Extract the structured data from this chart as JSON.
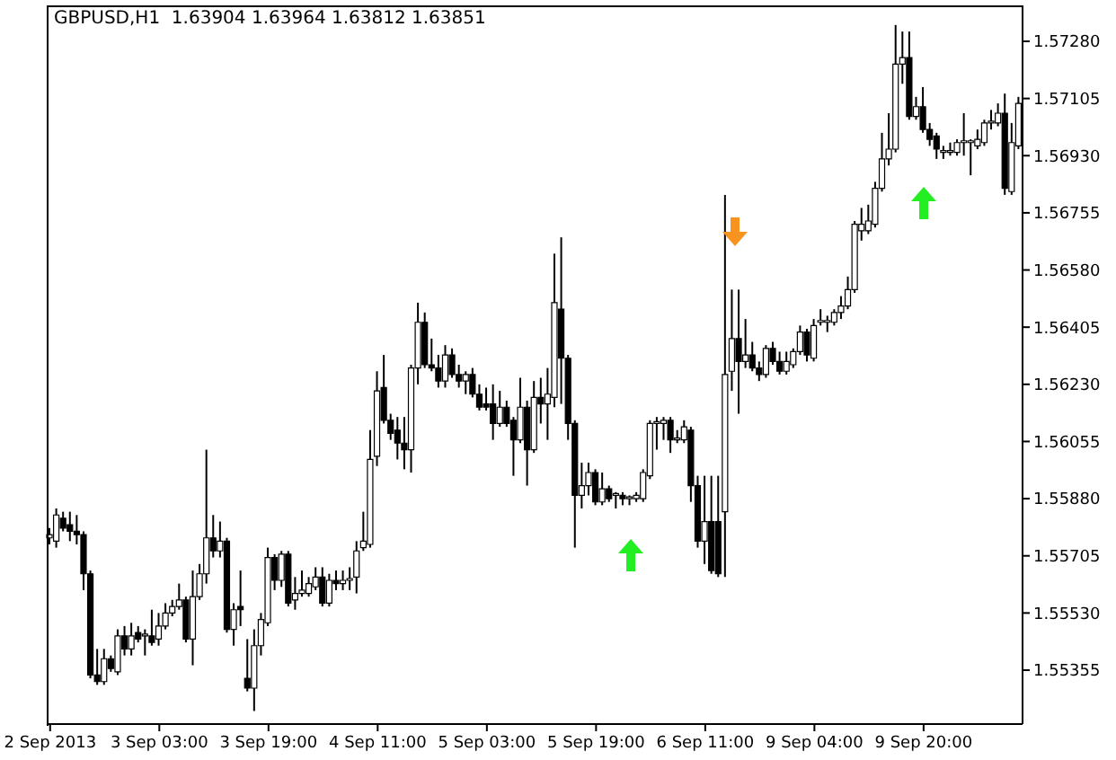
{
  "chart_data": {
    "type": "candlestick",
    "title": "GBPUSD,H1  1.63904 1.63964 1.63812 1.63851",
    "color": "#000000",
    "categories": [
      "2 Sep 2013",
      null,
      null,
      null,
      null,
      null,
      null,
      null,
      null,
      null,
      null,
      null,
      null,
      null,
      null,
      null,
      "3 Sep 03:00",
      null,
      null,
      null,
      null,
      null,
      null,
      null,
      null,
      null,
      null,
      null,
      null,
      null,
      null,
      null,
      "3 Sep 19:00",
      null,
      null,
      null,
      null,
      null,
      null,
      null,
      null,
      null,
      null,
      null,
      null,
      null,
      null,
      null,
      "4 Sep 11:00",
      null,
      null,
      null,
      null,
      null,
      null,
      null,
      null,
      null,
      null,
      null,
      null,
      null,
      null,
      null,
      "5 Sep 03:00",
      null,
      null,
      null,
      null,
      null,
      null,
      null,
      null,
      null,
      null,
      null,
      null,
      null,
      null,
      null,
      "5 Sep 19:00",
      null,
      null,
      null,
      null,
      null,
      null,
      null,
      null,
      null,
      null,
      null,
      null,
      null,
      null,
      null,
      "6 Sep 11:00",
      null,
      null,
      null,
      null,
      null,
      null,
      null,
      null,
      null,
      null,
      null,
      null,
      null,
      null,
      null,
      "9 Sep 04:00",
      null,
      null,
      null,
      null,
      null,
      null,
      null,
      null,
      null,
      null,
      null,
      null,
      null,
      null,
      null,
      "9 Sep 20:00",
      null,
      null,
      null,
      null,
      null,
      null,
      null,
      null,
      null,
      null,
      null,
      null,
      null,
      null
    ],
    "ohlc": [
      [
        1.5576,
        1.5579,
        1.5574,
        1.5577
      ],
      [
        1.5575,
        1.5585,
        1.5573,
        1.5583
      ],
      [
        1.5582,
        1.5584,
        1.5578,
        1.5579
      ],
      [
        1.558,
        1.5584,
        1.5575,
        1.5578
      ],
      [
        1.5578,
        1.5583,
        1.5574,
        1.5577
      ],
      [
        1.5577,
        1.5578,
        1.556,
        1.5565
      ],
      [
        1.5565,
        1.5566,
        1.5533,
        1.5534
      ],
      [
        1.5534,
        1.5542,
        1.5531,
        1.5532
      ],
      [
        1.5532,
        1.5542,
        1.5531,
        1.5539
      ],
      [
        1.5539,
        1.554,
        1.5535,
        1.5536
      ],
      [
        1.5535,
        1.5548,
        1.5534,
        1.5546
      ],
      [
        1.5546,
        1.5549,
        1.554,
        1.5542
      ],
      [
        1.5542,
        1.555,
        1.554,
        1.5546
      ],
      [
        1.5547,
        1.5549,
        1.5544,
        1.5545
      ],
      [
        1.5546,
        1.5548,
        1.554,
        1.5546
      ],
      [
        1.5546,
        1.5554,
        1.5543,
        1.5544
      ],
      [
        1.5545,
        1.5553,
        1.5543,
        1.5549
      ],
      [
        1.5549,
        1.5556,
        1.5548,
        1.5553
      ],
      [
        1.5553,
        1.5557,
        1.5552,
        1.5555
      ],
      [
        1.5555,
        1.5562,
        1.5554,
        1.5557
      ],
      [
        1.5557,
        1.5558,
        1.5544,
        1.5545
      ],
      [
        1.5545,
        1.5566,
        1.5537,
        1.5558
      ],
      [
        1.5558,
        1.5568,
        1.5557,
        1.5565
      ],
      [
        1.5565,
        1.5603,
        1.5562,
        1.5576
      ],
      [
        1.5576,
        1.5583,
        1.557,
        1.5572
      ],
      [
        1.5572,
        1.5581,
        1.557,
        1.5575
      ],
      [
        1.5575,
        1.5576,
        1.5547,
        1.5548
      ],
      [
        1.5548,
        1.5556,
        1.5543,
        1.5554
      ],
      [
        1.5555,
        1.5566,
        1.5549,
        1.5554
      ],
      [
        1.5533,
        1.5545,
        1.5529,
        1.553
      ],
      [
        1.553,
        1.5548,
        1.5523,
        1.5543
      ],
      [
        1.5543,
        1.5553,
        1.554,
        1.5551
      ],
      [
        1.555,
        1.5573,
        1.5549,
        1.557
      ],
      [
        1.557,
        1.5571,
        1.556,
        1.5563
      ],
      [
        1.5563,
        1.5572,
        1.5561,
        1.5571
      ],
      [
        1.5571,
        1.5572,
        1.5555,
        1.5556
      ],
      [
        1.5557,
        1.5564,
        1.5554,
        1.5559
      ],
      [
        1.5559,
        1.5566,
        1.5558,
        1.556
      ],
      [
        1.5559,
        1.5564,
        1.5558,
        1.5562
      ],
      [
        1.5561,
        1.5567,
        1.556,
        1.5564
      ],
      [
        1.5564,
        1.5567,
        1.5555,
        1.5556
      ],
      [
        1.5556,
        1.5565,
        1.5555,
        1.5563
      ],
      [
        1.5563,
        1.5566,
        1.556,
        1.5562
      ],
      [
        1.5562,
        1.5566,
        1.556,
        1.5563
      ],
      [
        1.5563,
        1.5567,
        1.556,
        1.5563
      ],
      [
        1.5564,
        1.5575,
        1.5559,
        1.5572
      ],
      [
        1.5573,
        1.5584,
        1.5572,
        1.5575
      ],
      [
        1.5574,
        1.5609,
        1.5573,
        1.56
      ],
      [
        1.5601,
        1.5627,
        1.5598,
        1.5621
      ],
      [
        1.5622,
        1.5632,
        1.5611,
        1.5612
      ],
      [
        1.5612,
        1.5614,
        1.5606,
        1.5608
      ],
      [
        1.5609,
        1.5613,
        1.56,
        1.5605
      ],
      [
        1.5605,
        1.5613,
        1.5597,
        1.5603
      ],
      [
        1.5603,
        1.5629,
        1.5596,
        1.5628
      ],
      [
        1.5628,
        1.5648,
        1.5623,
        1.5642
      ],
      [
        1.5642,
        1.5645,
        1.5628,
        1.5629
      ],
      [
        1.5629,
        1.5637,
        1.5627,
        1.5628
      ],
      [
        1.5628,
        1.5632,
        1.5622,
        1.5624
      ],
      [
        1.5624,
        1.5635,
        1.5622,
        1.5632
      ],
      [
        1.5632,
        1.5634,
        1.5625,
        1.5626
      ],
      [
        1.5626,
        1.5629,
        1.5622,
        1.5624
      ],
      [
        1.5624,
        1.5627,
        1.562,
        1.5626
      ],
      [
        1.5626,
        1.5628,
        1.5619,
        1.562
      ],
      [
        1.562,
        1.5623,
        1.5615,
        1.5616
      ],
      [
        1.5617,
        1.5622,
        1.5615,
        1.5616
      ],
      [
        1.5617,
        1.5623,
        1.5606,
        1.5611
      ],
      [
        1.5611,
        1.5621,
        1.561,
        1.5616
      ],
      [
        1.5616,
        1.5618,
        1.561,
        1.5611
      ],
      [
        1.5612,
        1.5613,
        1.5595,
        1.5606
      ],
      [
        1.5606,
        1.5625,
        1.5605,
        1.5616
      ],
      [
        1.5616,
        1.5618,
        1.5592,
        1.5603
      ],
      [
        1.5603,
        1.5624,
        1.5602,
        1.5619
      ],
      [
        1.5619,
        1.5625,
        1.5611,
        1.5617
      ],
      [
        1.5617,
        1.5628,
        1.5606,
        1.562
      ],
      [
        1.5619,
        1.5663,
        1.5616,
        1.5648
      ],
      [
        1.5646,
        1.5668,
        1.5617,
        1.5631
      ],
      [
        1.5631,
        1.5632,
        1.5606,
        1.5611
      ],
      [
        1.5611,
        1.5612,
        1.5573,
        1.5589
      ],
      [
        1.5589,
        1.5599,
        1.5585,
        1.5592
      ],
      [
        1.5592,
        1.5599,
        1.5589,
        1.5596
      ],
      [
        1.5596,
        1.5597,
        1.5586,
        1.5587
      ],
      [
        1.5587,
        1.5596,
        1.5586,
        1.5591
      ],
      [
        1.5591,
        1.5592,
        1.5587,
        1.5588
      ],
      [
        1.5589,
        1.559,
        1.5585,
        1.5589
      ],
      [
        1.5589,
        1.559,
        1.5586,
        1.5588
      ],
      [
        1.5588,
        1.5589,
        1.5586,
        1.5588
      ],
      [
        1.5588,
        1.559,
        1.5587,
        1.5589
      ],
      [
        1.5588,
        1.5597,
        1.5587,
        1.5596
      ],
      [
        1.5595,
        1.5612,
        1.5594,
        1.5611
      ],
      [
        1.5611,
        1.5613,
        1.5603,
        1.5611
      ],
      [
        1.5611,
        1.5613,
        1.5606,
        1.5612
      ],
      [
        1.5612,
        1.5613,
        1.5602,
        1.5606
      ],
      [
        1.5606,
        1.5609,
        1.5605,
        1.5606
      ],
      [
        1.5606,
        1.5612,
        1.5605,
        1.561
      ],
      [
        1.5609,
        1.561,
        1.5587,
        1.5592
      ],
      [
        1.5592,
        1.5595,
        1.5573,
        1.5575
      ],
      [
        1.5575,
        1.5595,
        1.5568,
        1.5581
      ],
      [
        1.5581,
        1.5595,
        1.5565,
        1.5566
      ],
      [
        1.5581,
        1.5595,
        1.5564,
        1.5565
      ],
      [
        1.5584,
        1.5681,
        1.5564,
        1.5626
      ],
      [
        1.5627,
        1.5652,
        1.5621,
        1.5637
      ],
      [
        1.5637,
        1.5652,
        1.5614,
        1.563
      ],
      [
        1.563,
        1.5643,
        1.5628,
        1.5632
      ],
      [
        1.5632,
        1.5636,
        1.5627,
        1.5628
      ],
      [
        1.5628,
        1.563,
        1.5624,
        1.5626
      ],
      [
        1.5626,
        1.5635,
        1.5625,
        1.5634
      ],
      [
        1.5634,
        1.5636,
        1.5629,
        1.563
      ],
      [
        1.563,
        1.5633,
        1.5626,
        1.5627
      ],
      [
        1.5627,
        1.5633,
        1.5626,
        1.563
      ],
      [
        1.5629,
        1.5634,
        1.5628,
        1.5633
      ],
      [
        1.5633,
        1.5641,
        1.5632,
        1.5639
      ],
      [
        1.5639,
        1.564,
        1.563,
        1.5632
      ],
      [
        1.5631,
        1.5643,
        1.563,
        1.5641
      ],
      [
        1.5642,
        1.5646,
        1.5641,
        1.5642
      ],
      [
        1.5642,
        1.5644,
        1.5639,
        1.5642
      ],
      [
        1.5642,
        1.5646,
        1.5641,
        1.5645
      ],
      [
        1.5645,
        1.565,
        1.5643,
        1.5647
      ],
      [
        1.5647,
        1.5656,
        1.5646,
        1.5652
      ],
      [
        1.5652,
        1.5673,
        1.5651,
        1.5672
      ],
      [
        1.567,
        1.5677,
        1.5667,
        1.5672
      ],
      [
        1.567,
        1.5678,
        1.5669,
        1.5673
      ],
      [
        1.5672,
        1.5685,
        1.5671,
        1.5683
      ],
      [
        1.5683,
        1.57,
        1.5682,
        1.5692
      ],
      [
        1.5692,
        1.5706,
        1.569,
        1.5695
      ],
      [
        1.5695,
        1.5733,
        1.5694,
        1.5721
      ],
      [
        1.5721,
        1.5731,
        1.5715,
        1.5723
      ],
      [
        1.5723,
        1.5731,
        1.5704,
        1.5705
      ],
      [
        1.5705,
        1.5711,
        1.5704,
        1.5708
      ],
      [
        1.5708,
        1.5714,
        1.57,
        1.5701
      ],
      [
        1.5701,
        1.5703,
        1.5696,
        1.5698
      ],
      [
        1.5699,
        1.57,
        1.5692,
        1.5695
      ],
      [
        1.5694,
        1.5696,
        1.5692,
        1.5694
      ],
      [
        1.5694,
        1.5697,
        1.5693,
        1.5694
      ],
      [
        1.5694,
        1.5698,
        1.5693,
        1.5697
      ],
      [
        1.5697,
        1.5706,
        1.5693,
        1.5697
      ],
      [
        1.5697,
        1.5698,
        1.5687,
        1.5697
      ],
      [
        1.5696,
        1.5701,
        1.5695,
        1.5698
      ],
      [
        1.5697,
        1.5704,
        1.5696,
        1.5703
      ],
      [
        1.5703,
        1.5707,
        1.5701,
        1.5703
      ],
      [
        1.5703,
        1.5709,
        1.5702,
        1.5706
      ],
      [
        1.5706,
        1.5712,
        1.5681,
        1.5683
      ],
      [
        1.5682,
        1.5703,
        1.5681,
        1.5697
      ],
      [
        1.5696,
        1.5711,
        1.5695,
        1.5709
      ]
    ],
    "ylim": [
      1.5519,
      1.5739
    ],
    "yticks": [
      {
        "value": 1.55355,
        "label": "1.55355"
      },
      {
        "value": 1.5553,
        "label": "1.55530"
      },
      {
        "value": 1.55705,
        "label": "1.55705"
      },
      {
        "value": 1.5588,
        "label": "1.55880"
      },
      {
        "value": 1.56055,
        "label": "1.56055"
      },
      {
        "value": 1.5623,
        "label": "1.56230"
      },
      {
        "value": 1.56405,
        "label": "1.56405"
      },
      {
        "value": 1.5658,
        "label": "1.56580"
      },
      {
        "value": 1.56755,
        "label": "1.56755"
      },
      {
        "value": 1.5693,
        "label": "1.56930"
      },
      {
        "value": 1.57105,
        "label": "1.57105"
      },
      {
        "value": 1.5728,
        "label": "1.57280"
      }
    ],
    "grid": false,
    "legend": false
  }
}
